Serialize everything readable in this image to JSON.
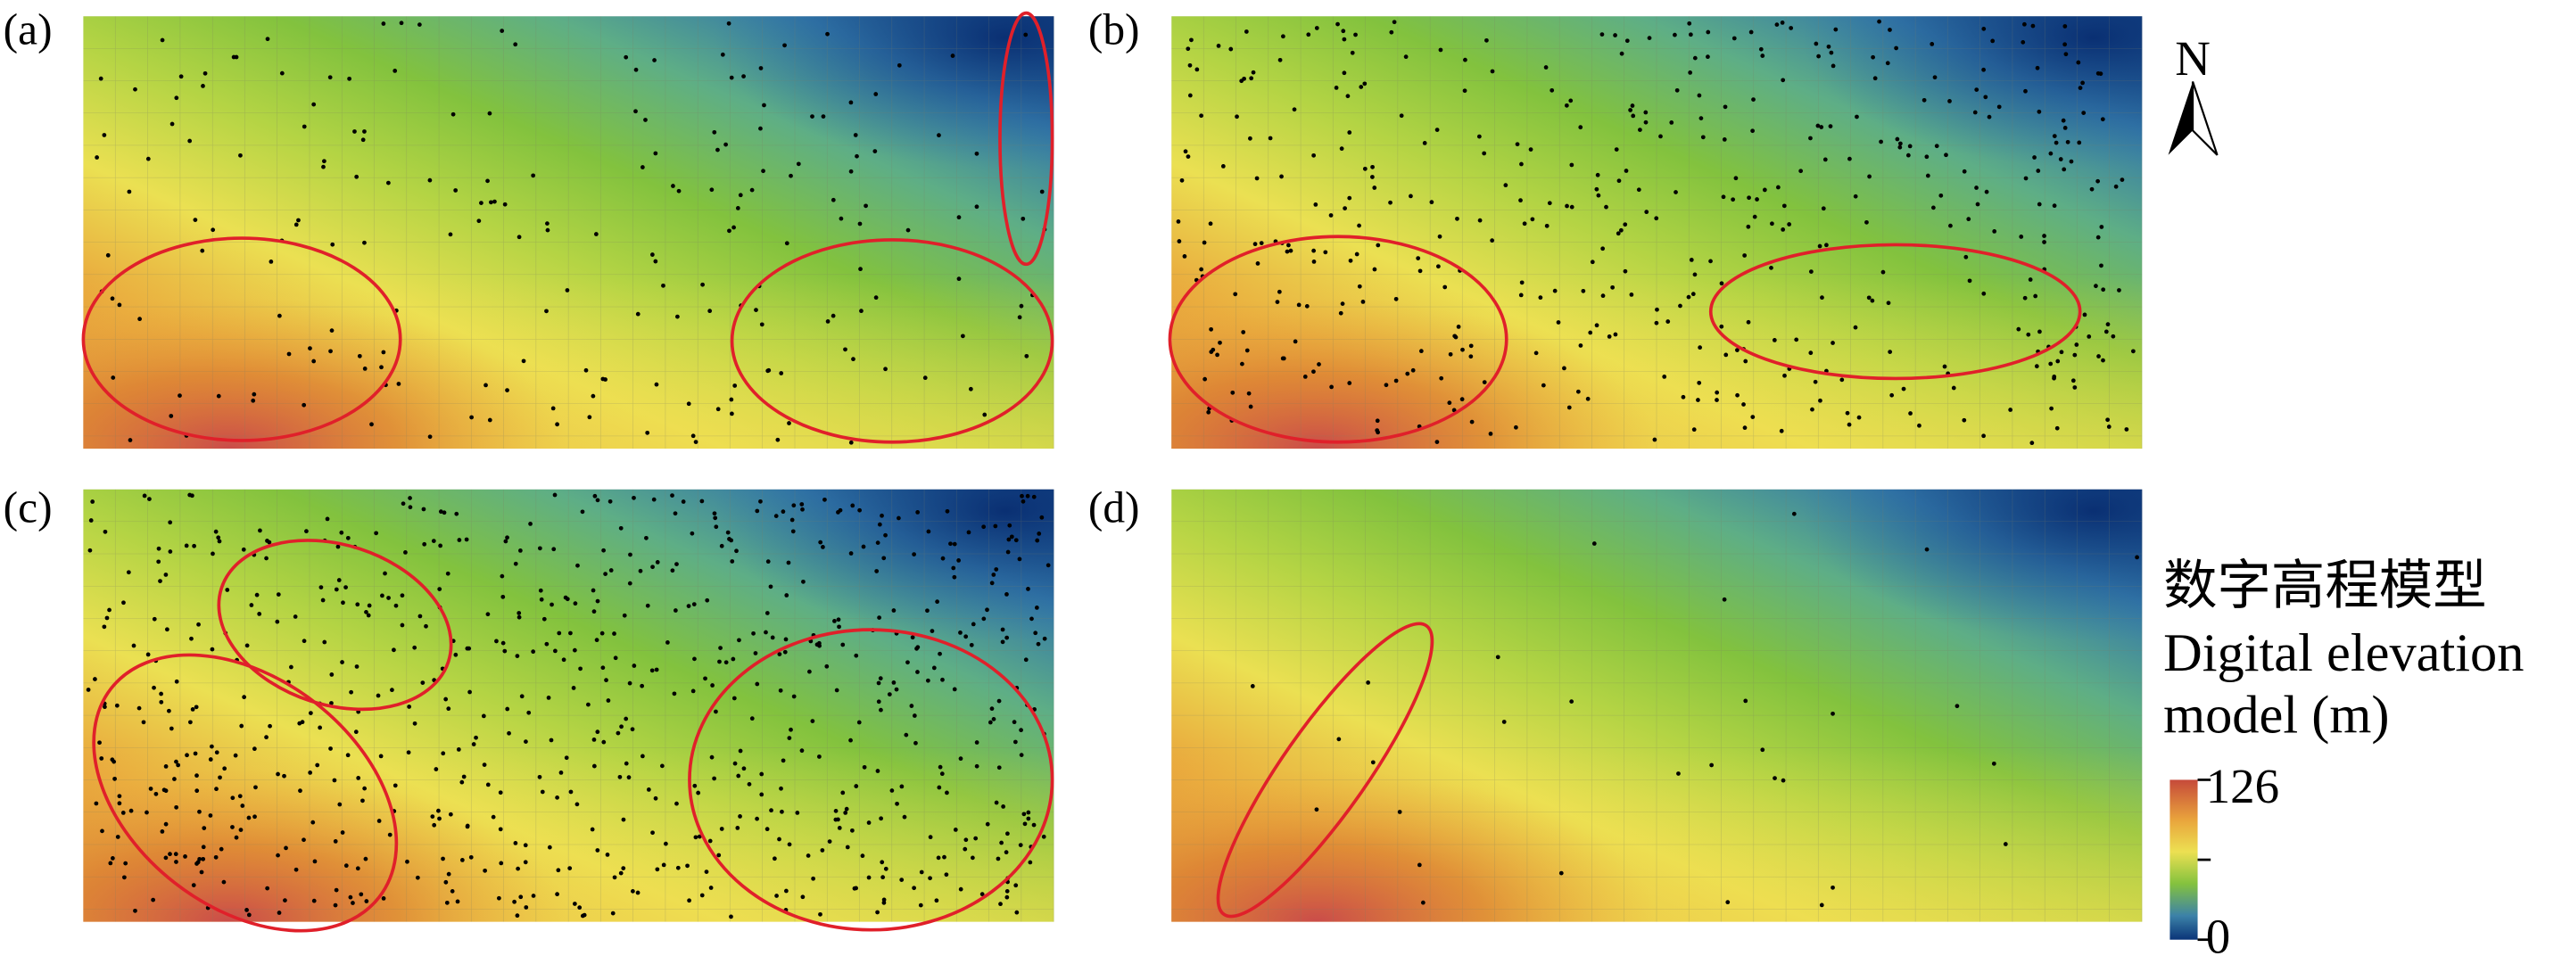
{
  "panels": [
    {
      "label": "(a)"
    },
    {
      "label": "(b)"
    },
    {
      "label": "(c)"
    },
    {
      "label": "(d)"
    }
  ],
  "north": "N",
  "legend": {
    "title_cn": "数字高程模型",
    "title_en_1": "Digital elevation",
    "title_en_2": "model (m)",
    "max": 126,
    "min": 0
  }
}
